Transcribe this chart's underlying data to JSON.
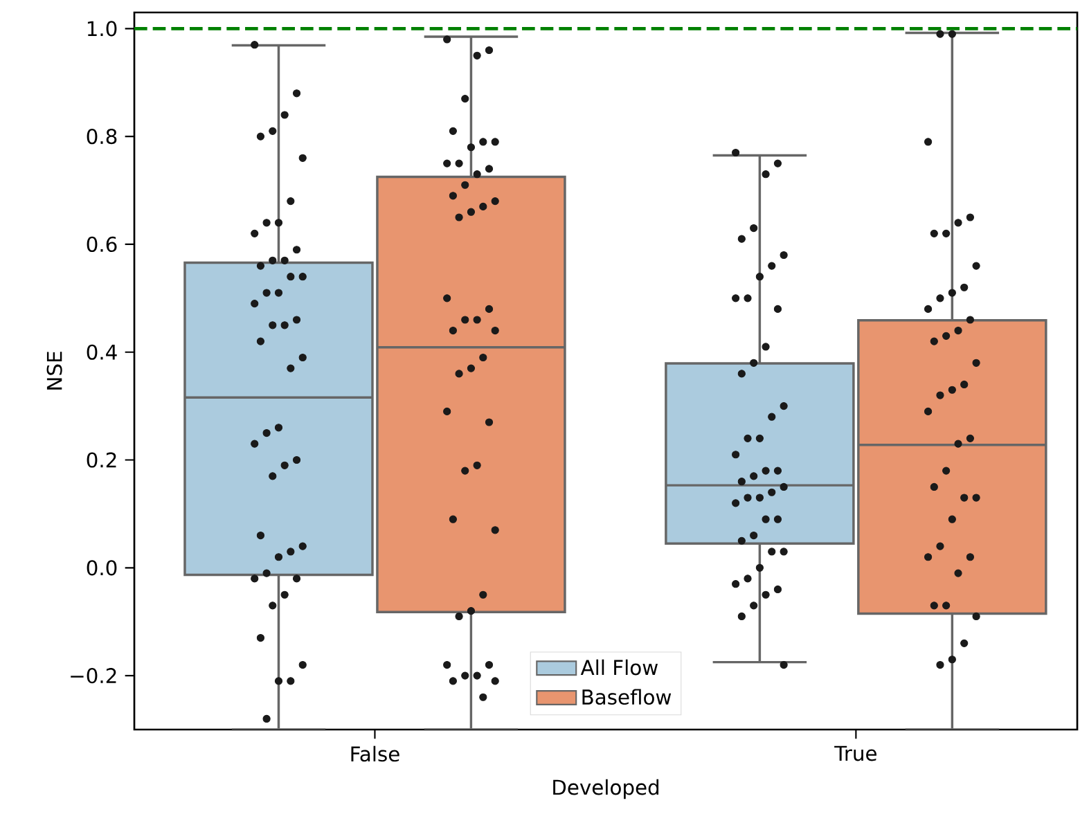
{
  "chart_data": {
    "type": "box",
    "xlabel": "Developed",
    "ylabel": "NSE",
    "categories": [
      "False",
      "True"
    ],
    "ylim": [
      -0.3,
      1.03
    ],
    "yticks": [
      {
        "value": -0.2,
        "label": "−0.2"
      },
      {
        "value": 0,
        "label": "0.0"
      },
      {
        "value": 0.2,
        "label": "0.2"
      },
      {
        "value": 0.4,
        "label": "0.4"
      },
      {
        "value": 0.6,
        "label": "0.6"
      },
      {
        "value": 0.8,
        "label": "0.8"
      },
      {
        "value": 1,
        "label": "1.0"
      }
    ],
    "legend": "bottom",
    "ref_lines": [
      {
        "axis": "y",
        "value": 1.0,
        "color": "#008000",
        "line_style": "dashed"
      }
    ],
    "series": [
      {
        "name": "All Flow",
        "color": "#abcbde",
        "boxes": [
          {
            "low": -0.3,
            "q1": -0.013,
            "median": 0.316,
            "q3": 0.566,
            "high": 0.969
          },
          {
            "low": -0.175,
            "q1": 0.045,
            "median": 0.153,
            "q3": 0.379,
            "high": 0.765
          }
        ]
      },
      {
        "name": "Baseflow",
        "color": "#e8956f",
        "boxes": [
          {
            "low": -0.3,
            "q1": -0.082,
            "median": 0.409,
            "q3": 0.725,
            "high": 0.985
          },
          {
            "low": -0.3,
            "q1": -0.085,
            "median": 0.228,
            "q3": 0.459,
            "high": 0.992
          }
        ]
      },
      {
        "type": "scatter",
        "color": "#1a1a1a",
        "x": [
          "False",
          "False",
          "False",
          "False",
          "False",
          "False",
          "False",
          "False",
          "False",
          "False",
          "False",
          "False",
          "False",
          "False",
          "False",
          "False",
          "False",
          "False",
          "False",
          "False",
          "False",
          "False",
          "False",
          "False",
          "False",
          "False",
          "False",
          "False",
          "False",
          "False",
          "False",
          "False",
          "False",
          "False",
          "False",
          "False",
          "False",
          "False",
          "False",
          "False",
          "False",
          "False",
          "False",
          "False",
          "False",
          "True",
          "True",
          "True",
          "True",
          "True",
          "True",
          "True",
          "True",
          "True",
          "True",
          "True",
          "True",
          "True",
          "True",
          "True",
          "True",
          "True",
          "True",
          "True",
          "True",
          "True",
          "True",
          "True",
          "True",
          "True",
          "True",
          "True",
          "True",
          "True",
          "True",
          "True",
          "True",
          "True",
          "True",
          "True",
          "True",
          "True",
          "True",
          "True",
          "True",
          "True",
          "True"
        ],
        "values": [
          0.97,
          0.88,
          0.84,
          0.81,
          0.8,
          0.76,
          0.68,
          0.64,
          0.64,
          0.62,
          0.59,
          0.57,
          0.57,
          0.56,
          0.54,
          0.54,
          0.51,
          0.51,
          0.49,
          0.46,
          0.45,
          0.45,
          0.42,
          0.39,
          0.37,
          0.26,
          0.25,
          0.23,
          0.2,
          0.19,
          0.17,
          0.06,
          0.04,
          0.03,
          0.02,
          -0.01,
          -0.02,
          -0.02,
          -0.05,
          -0.07,
          -0.13,
          -0.18,
          -0.21,
          -0.21,
          -0.28,
          0.77,
          0.75,
          0.73,
          0.63,
          0.61,
          0.58,
          0.56,
          0.54,
          0.5,
          0.5,
          0.48,
          0.41,
          0.38,
          0.36,
          0.3,
          0.28,
          0.24,
          0.24,
          0.21,
          0.18,
          0.18,
          0.17,
          0.16,
          0.15,
          0.14,
          0.13,
          0.13,
          0.12,
          0.09,
          0.09,
          0.06,
          0.05,
          0.03,
          0.03,
          0.0,
          -0.02,
          -0.03,
          -0.04,
          -0.05,
          -0.07,
          -0.09,
          -0.18
        ]
      },
      {
        "type": "scatter",
        "color": "#1a1a1a",
        "x": [
          "False",
          "False",
          "False",
          "False",
          "False",
          "False",
          "False",
          "False",
          "False",
          "False",
          "False",
          "False",
          "False",
          "False",
          "False",
          "False",
          "False",
          "False",
          "False",
          "False",
          "False",
          "False",
          "False",
          "False",
          "False",
          "False",
          "False",
          "False",
          "False",
          "False",
          "False",
          "False",
          "False",
          "False",
          "False",
          "False",
          "False",
          "False",
          "False",
          "False",
          "False",
          "False",
          "False",
          "True",
          "True",
          "True",
          "True",
          "True",
          "True",
          "True",
          "True",
          "True",
          "True",
          "True",
          "True",
          "True",
          "True",
          "True",
          "True",
          "True",
          "True",
          "True",
          "True",
          "True",
          "True",
          "True",
          "True",
          "True",
          "True",
          "True",
          "True",
          "True",
          "True",
          "True",
          "True",
          "True",
          "True",
          "True",
          "True",
          "True",
          "True"
        ],
        "values": [
          0.98,
          0.96,
          0.95,
          0.87,
          0.81,
          0.79,
          0.79,
          0.78,
          0.75,
          0.75,
          0.74,
          0.73,
          0.71,
          0.69,
          0.68,
          0.67,
          0.66,
          0.65,
          0.5,
          0.48,
          0.46,
          0.46,
          0.44,
          0.44,
          0.39,
          0.37,
          0.36,
          0.29,
          0.27,
          0.19,
          0.18,
          0.09,
          0.07,
          -0.05,
          -0.08,
          -0.09,
          -0.18,
          -0.18,
          -0.2,
          -0.2,
          -0.21,
          -0.21,
          -0.24,
          0.99,
          0.99,
          0.79,
          0.65,
          0.64,
          0.62,
          0.62,
          0.56,
          0.52,
          0.51,
          0.5,
          0.48,
          0.46,
          0.44,
          0.43,
          0.42,
          0.38,
          0.34,
          0.33,
          0.32,
          0.29,
          0.24,
          0.23,
          0.18,
          0.15,
          0.13,
          0.13,
          0.09,
          0.04,
          0.02,
          0.02,
          -0.01,
          -0.07,
          -0.07,
          -0.09,
          -0.14,
          -0.17,
          -0.18
        ]
      }
    ]
  }
}
